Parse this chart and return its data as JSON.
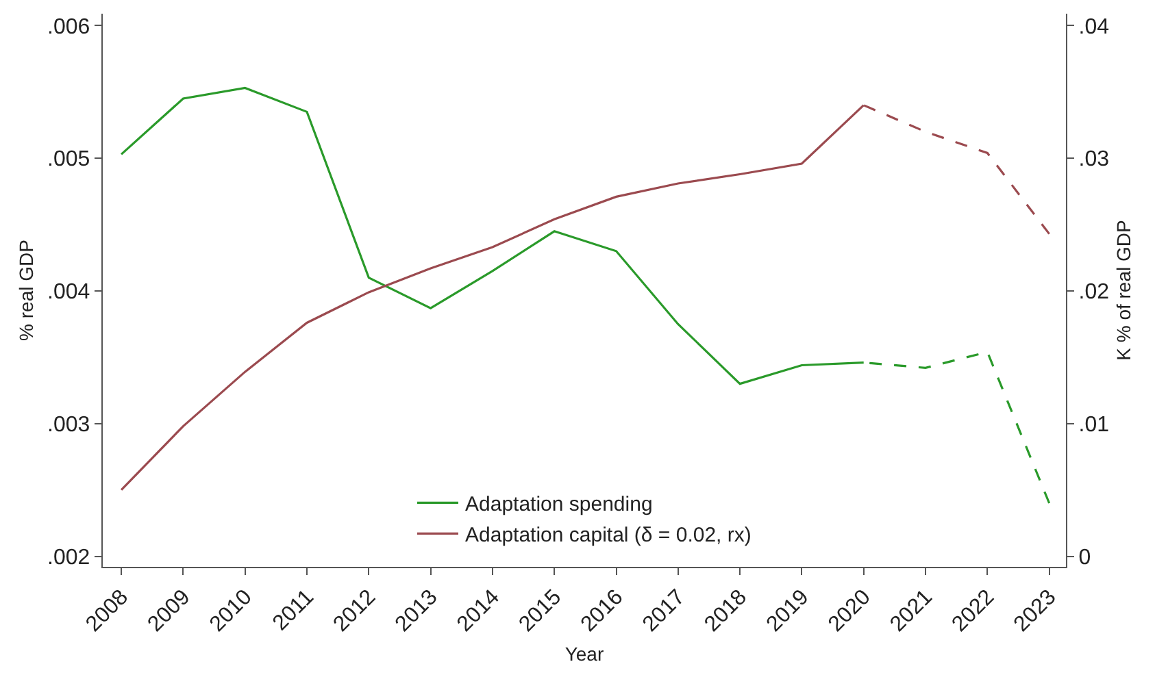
{
  "chart_data": {
    "type": "line",
    "xlabel": "Year",
    "ylabel": "% real GDP",
    "y2label": "K % of real GDP",
    "xlim": [
      2007.7,
      2023.27
    ],
    "xticks": [
      2008,
      2009,
      2010,
      2011,
      2012,
      2013,
      2014,
      2015,
      2016,
      2017,
      2018,
      2019,
      2020,
      2021,
      2022,
      2023
    ],
    "ylim": [
      0.00192,
      0.00609
    ],
    "yticks": [
      {
        "value": 0.002,
        "label": ".002"
      },
      {
        "value": 0.003,
        "label": ".003"
      },
      {
        "value": 0.004,
        "label": ".004"
      },
      {
        "value": 0.005,
        "label": ".005"
      },
      {
        "value": 0.006,
        "label": ".006"
      }
    ],
    "y2lim": [
      -0.0008,
      0.0409
    ],
    "y2ticks": [
      0,
      {
        "value": 0.01,
        "label": ".01"
      },
      {
        "value": 0.02,
        "label": ".02"
      },
      {
        "value": 0.03,
        "label": ".03"
      },
      {
        "value": 0.04,
        "label": ".04"
      }
    ],
    "legend": "bottom",
    "marker": "none",
    "series": [
      {
        "name": "Adaptation spending",
        "color": "#2a9a2a",
        "line_style": "solid",
        "x": [
          2008,
          2009,
          2010,
          2011,
          2012,
          2013,
          2014,
          2015,
          2016,
          2017,
          2018,
          2019,
          2020
        ],
        "values": [
          0.00503,
          0.00545,
          0.00553,
          0.00535,
          0.0041,
          0.00387,
          0.00415,
          0.00445,
          0.0043,
          0.00375,
          0.0033,
          0.00344,
          0.00346
        ]
      },
      {
        "name": "Adaptation capital (δ = 0.02, rx)",
        "color": "#9b4a4f",
        "line_style": "solid",
        "axis": "y2",
        "x": [
          2008,
          2009,
          2010,
          2011,
          2012,
          2013,
          2014,
          2015,
          2016,
          2017,
          2018,
          2019,
          2020
        ],
        "values": [
          0.005,
          0.0098,
          0.0139,
          0.0176,
          0.0199,
          0.0217,
          0.0233,
          0.0254,
          0.0271,
          0.0281,
          0.0288,
          0.0296,
          0.034
        ]
      },
      {
        "color": "#2a9a2a",
        "line_style": "dashed",
        "x": [
          2023,
          2022,
          2021,
          2020
        ],
        "values": [
          0.0024,
          0.00354,
          0.00342,
          0.00346
        ]
      },
      {
        "color": "#9b4a4f",
        "line_style": "dashed",
        "axis": "y2",
        "x": [
          2023,
          2022,
          2021,
          2020
        ],
        "values": [
          0.0243,
          0.0304,
          0.032,
          0.034
        ]
      }
    ]
  }
}
